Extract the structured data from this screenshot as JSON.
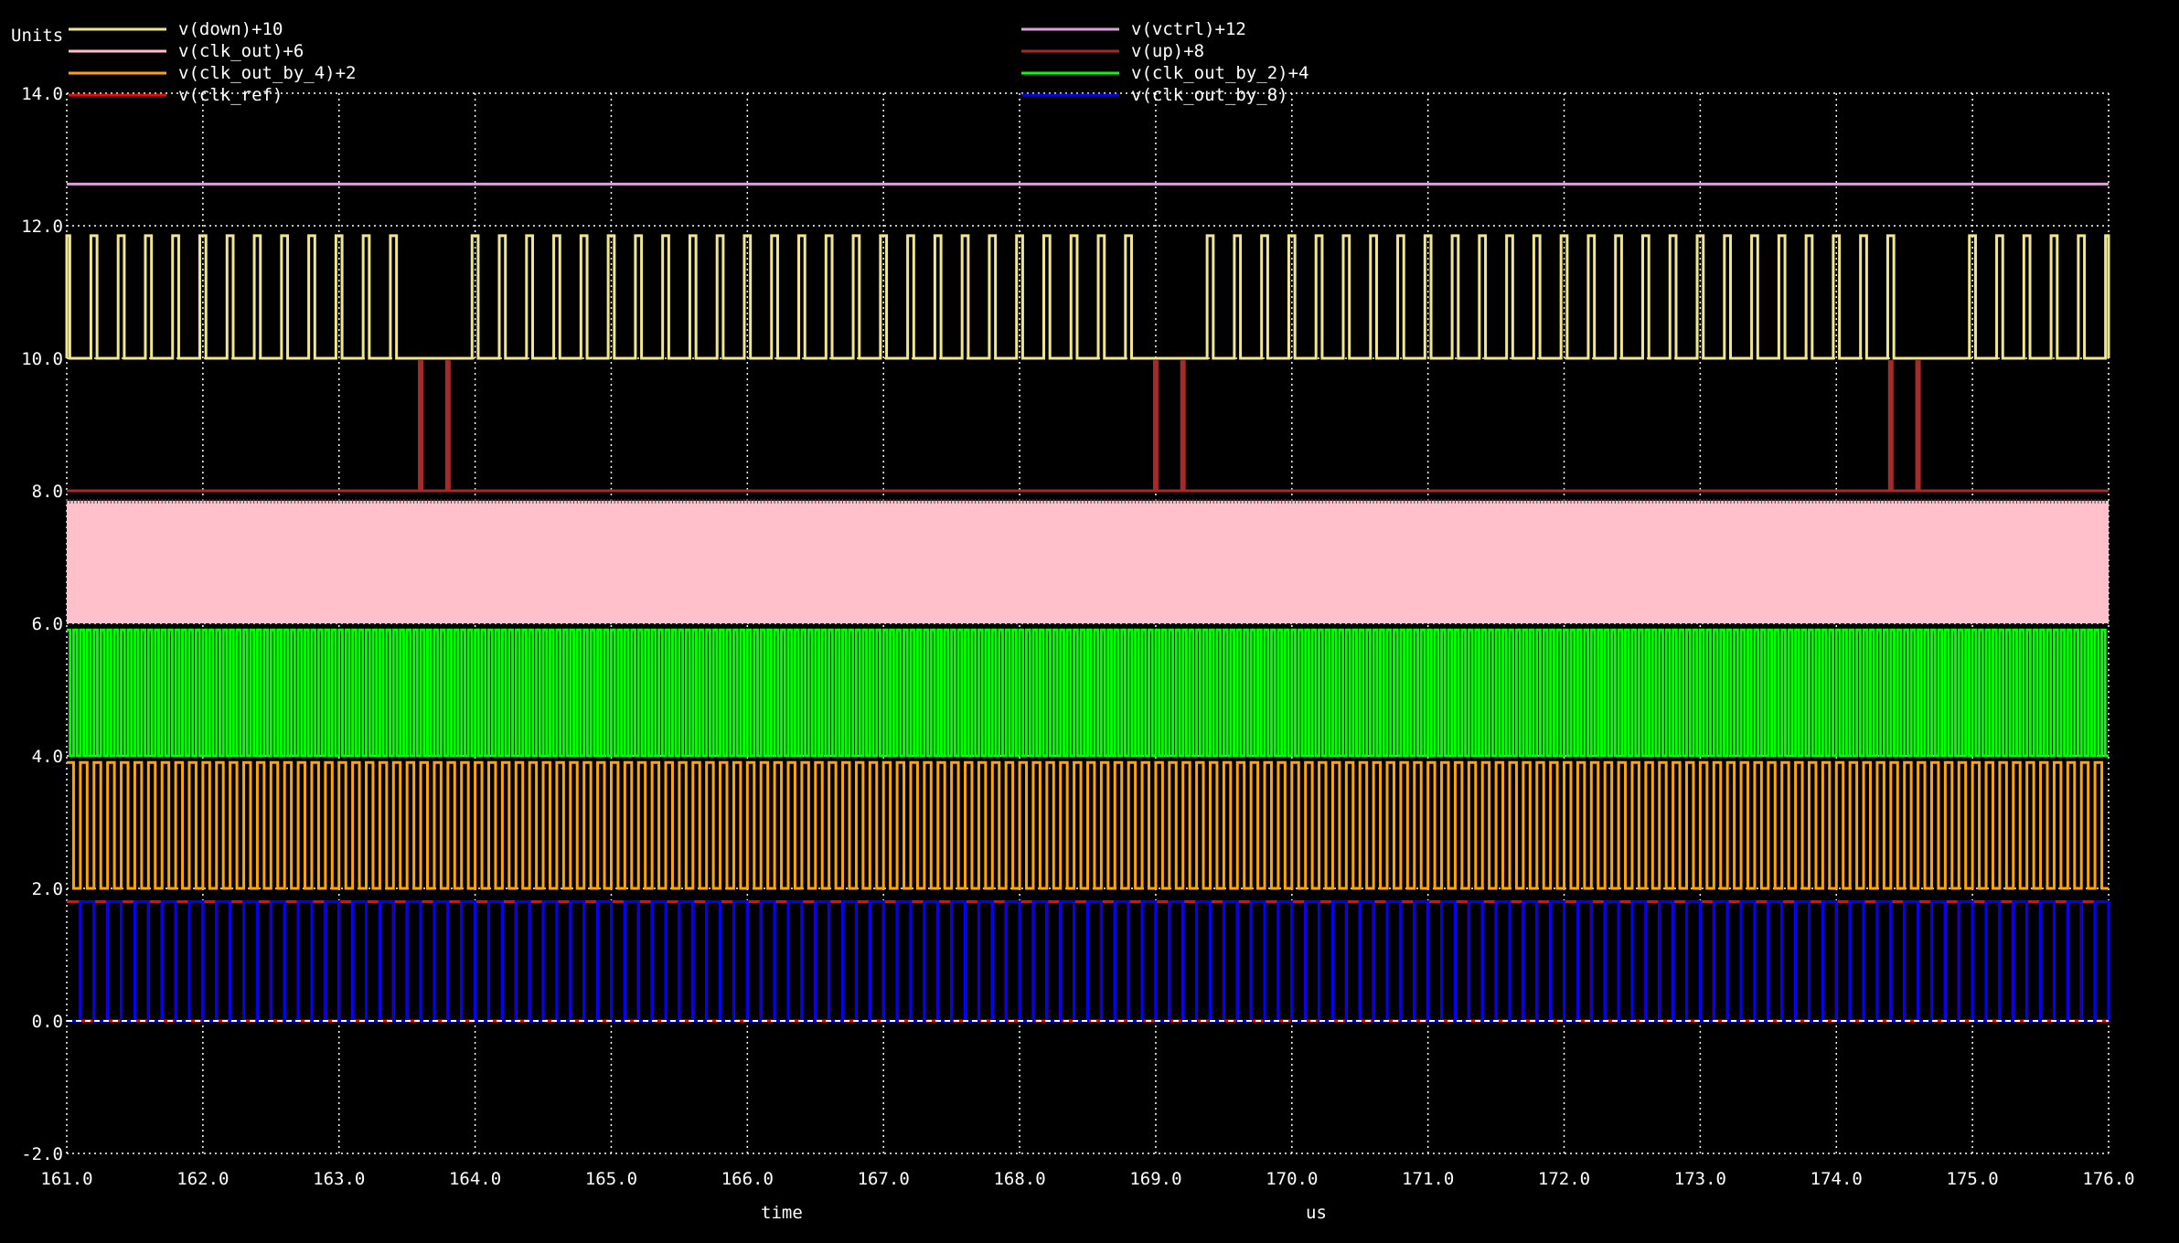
{
  "chart_data": {
    "type": "line",
    "title": "",
    "ylabel": "Units",
    "xlabel": "time",
    "xunit": "us",
    "xlim": [
      161.0,
      176.0
    ],
    "ylim": [
      -2.0,
      14.0
    ],
    "x_ticks": [
      "161.0",
      "162.0",
      "163.0",
      "164.0",
      "165.0",
      "166.0",
      "167.0",
      "168.0",
      "169.0",
      "170.0",
      "171.0",
      "172.0",
      "173.0",
      "174.0",
      "175.0",
      "176.0"
    ],
    "y_ticks": [
      "14.0",
      "12.0",
      "10.0",
      "8.0",
      "6.0",
      "4.0",
      "2.0",
      "0.0",
      "-2.0"
    ],
    "grid": true,
    "legend_position": "top",
    "series": [
      {
        "name": "v(down)+10",
        "color": "#f0e68c",
        "offset": 10,
        "kind": "pulses",
        "pulse_high": 11.85,
        "pulse_width_us": 0.045,
        "pulse_times_us": [
          161.0,
          161.2,
          161.4,
          161.6,
          161.8,
          162.0,
          162.2,
          162.4,
          162.6,
          162.8,
          163.0,
          163.2,
          163.4,
          164.0,
          164.2,
          164.4,
          164.6,
          164.8,
          165.0,
          165.2,
          165.4,
          165.6,
          165.8,
          166.0,
          166.2,
          166.4,
          166.6,
          166.8,
          167.0,
          167.2,
          167.4,
          167.6,
          167.8,
          168.0,
          168.2,
          168.4,
          168.6,
          168.8,
          169.4,
          169.6,
          169.8,
          170.0,
          170.2,
          170.4,
          170.6,
          170.8,
          171.0,
          171.2,
          171.4,
          171.6,
          171.8,
          172.0,
          172.2,
          172.4,
          172.6,
          172.8,
          173.0,
          173.2,
          173.4,
          173.6,
          173.8,
          174.0,
          174.2,
          174.4,
          175.0,
          175.2,
          175.4,
          175.6,
          175.8,
          176.0
        ]
      },
      {
        "name": "v(vctrl)+12",
        "color": "#dda0dd",
        "offset": 12,
        "kind": "flat",
        "level": 12.63
      },
      {
        "name": "v(clk_out)+6",
        "color": "#ffc0cb",
        "offset": 6,
        "kind": "band",
        "low": 6.0,
        "high": 7.85
      },
      {
        "name": "v(up)+8",
        "color": "#a52a2a",
        "offset": 8,
        "kind": "pulses",
        "pulse_high": 9.95,
        "pulse_width_us": 0.02,
        "pulse_times_us": [
          163.6,
          163.8,
          169.0,
          169.2,
          174.4,
          174.6
        ]
      },
      {
        "name": "v(clk_out_by_4)+2",
        "color": "#ffa500",
        "offset": 2,
        "kind": "square",
        "low": 2.0,
        "high": 3.9,
        "period_us": 0.1
      },
      {
        "name": "v(clk_out_by_2)+4",
        "color": "#00ff00",
        "offset": 4,
        "kind": "square",
        "low": 4.0,
        "high": 5.9,
        "period_us": 0.05
      },
      {
        "name": "v(clk_ref)",
        "color": "#ff0000",
        "offset": 0,
        "kind": "square",
        "low": 0.0,
        "high": 1.8,
        "period_us": 0.2
      },
      {
        "name": "v(clk_out_by_8)",
        "color": "#0000ff",
        "offset": 0,
        "kind": "square",
        "low": 0.0,
        "high": 1.8,
        "period_us": 0.2
      }
    ]
  }
}
